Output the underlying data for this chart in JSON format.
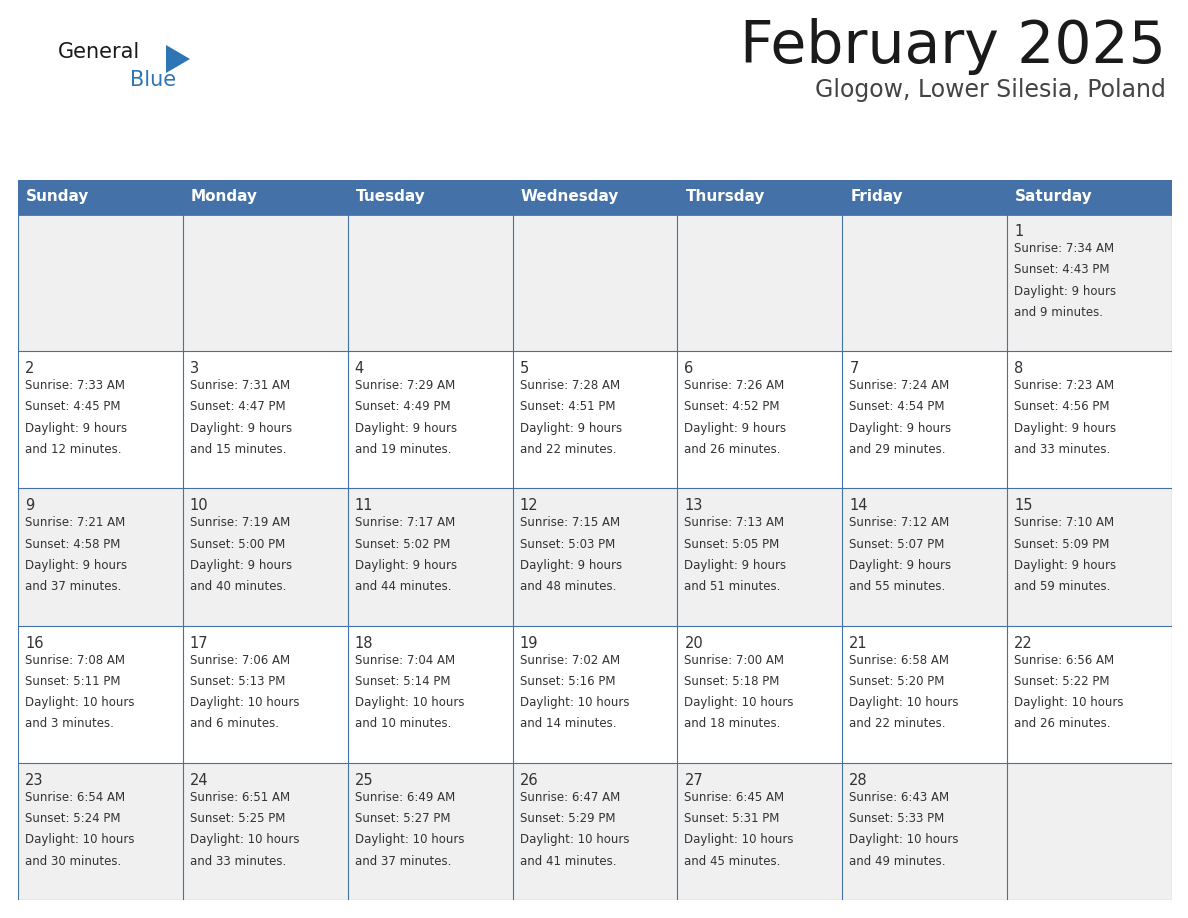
{
  "title": "February 2025",
  "subtitle": "Glogow, Lower Silesia, Poland",
  "days_of_week": [
    "Sunday",
    "Monday",
    "Tuesday",
    "Wednesday",
    "Thursday",
    "Friday",
    "Saturday"
  ],
  "header_bg": "#4472A8",
  "header_text": "#FFFFFF",
  "cell_bg_even": "#F0F0F0",
  "cell_bg_odd": "#FFFFFF",
  "cell_text": "#333333",
  "border_color": "#4472A8",
  "border_thin": "#CCCCCC",
  "title_color": "#1a1a1a",
  "subtitle_color": "#444444",
  "logo_general_color": "#1a1a1a",
  "logo_blue_color": "#2E75B6",
  "calendar_data": [
    {
      "day": 1,
      "col": 6,
      "row": 0,
      "sunrise": "7:34 AM",
      "sunset": "4:43 PM",
      "daylight": "9 hours and 9 minutes."
    },
    {
      "day": 2,
      "col": 0,
      "row": 1,
      "sunrise": "7:33 AM",
      "sunset": "4:45 PM",
      "daylight": "9 hours and 12 minutes."
    },
    {
      "day": 3,
      "col": 1,
      "row": 1,
      "sunrise": "7:31 AM",
      "sunset": "4:47 PM",
      "daylight": "9 hours and 15 minutes."
    },
    {
      "day": 4,
      "col": 2,
      "row": 1,
      "sunrise": "7:29 AM",
      "sunset": "4:49 PM",
      "daylight": "9 hours and 19 minutes."
    },
    {
      "day": 5,
      "col": 3,
      "row": 1,
      "sunrise": "7:28 AM",
      "sunset": "4:51 PM",
      "daylight": "9 hours and 22 minutes."
    },
    {
      "day": 6,
      "col": 4,
      "row": 1,
      "sunrise": "7:26 AM",
      "sunset": "4:52 PM",
      "daylight": "9 hours and 26 minutes."
    },
    {
      "day": 7,
      "col": 5,
      "row": 1,
      "sunrise": "7:24 AM",
      "sunset": "4:54 PM",
      "daylight": "9 hours and 29 minutes."
    },
    {
      "day": 8,
      "col": 6,
      "row": 1,
      "sunrise": "7:23 AM",
      "sunset": "4:56 PM",
      "daylight": "9 hours and 33 minutes."
    },
    {
      "day": 9,
      "col": 0,
      "row": 2,
      "sunrise": "7:21 AM",
      "sunset": "4:58 PM",
      "daylight": "9 hours and 37 minutes."
    },
    {
      "day": 10,
      "col": 1,
      "row": 2,
      "sunrise": "7:19 AM",
      "sunset": "5:00 PM",
      "daylight": "9 hours and 40 minutes."
    },
    {
      "day": 11,
      "col": 2,
      "row": 2,
      "sunrise": "7:17 AM",
      "sunset": "5:02 PM",
      "daylight": "9 hours and 44 minutes."
    },
    {
      "day": 12,
      "col": 3,
      "row": 2,
      "sunrise": "7:15 AM",
      "sunset": "5:03 PM",
      "daylight": "9 hours and 48 minutes."
    },
    {
      "day": 13,
      "col": 4,
      "row": 2,
      "sunrise": "7:13 AM",
      "sunset": "5:05 PM",
      "daylight": "9 hours and 51 minutes."
    },
    {
      "day": 14,
      "col": 5,
      "row": 2,
      "sunrise": "7:12 AM",
      "sunset": "5:07 PM",
      "daylight": "9 hours and 55 minutes."
    },
    {
      "day": 15,
      "col": 6,
      "row": 2,
      "sunrise": "7:10 AM",
      "sunset": "5:09 PM",
      "daylight": "9 hours and 59 minutes."
    },
    {
      "day": 16,
      "col": 0,
      "row": 3,
      "sunrise": "7:08 AM",
      "sunset": "5:11 PM",
      "daylight": "10 hours and 3 minutes."
    },
    {
      "day": 17,
      "col": 1,
      "row": 3,
      "sunrise": "7:06 AM",
      "sunset": "5:13 PM",
      "daylight": "10 hours and 6 minutes."
    },
    {
      "day": 18,
      "col": 2,
      "row": 3,
      "sunrise": "7:04 AM",
      "sunset": "5:14 PM",
      "daylight": "10 hours and 10 minutes."
    },
    {
      "day": 19,
      "col": 3,
      "row": 3,
      "sunrise": "7:02 AM",
      "sunset": "5:16 PM",
      "daylight": "10 hours and 14 minutes."
    },
    {
      "day": 20,
      "col": 4,
      "row": 3,
      "sunrise": "7:00 AM",
      "sunset": "5:18 PM",
      "daylight": "10 hours and 18 minutes."
    },
    {
      "day": 21,
      "col": 5,
      "row": 3,
      "sunrise": "6:58 AM",
      "sunset": "5:20 PM",
      "daylight": "10 hours and 22 minutes."
    },
    {
      "day": 22,
      "col": 6,
      "row": 3,
      "sunrise": "6:56 AM",
      "sunset": "5:22 PM",
      "daylight": "10 hours and 26 minutes."
    },
    {
      "day": 23,
      "col": 0,
      "row": 4,
      "sunrise": "6:54 AM",
      "sunset": "5:24 PM",
      "daylight": "10 hours and 30 minutes."
    },
    {
      "day": 24,
      "col": 1,
      "row": 4,
      "sunrise": "6:51 AM",
      "sunset": "5:25 PM",
      "daylight": "10 hours and 33 minutes."
    },
    {
      "day": 25,
      "col": 2,
      "row": 4,
      "sunrise": "6:49 AM",
      "sunset": "5:27 PM",
      "daylight": "10 hours and 37 minutes."
    },
    {
      "day": 26,
      "col": 3,
      "row": 4,
      "sunrise": "6:47 AM",
      "sunset": "5:29 PM",
      "daylight": "10 hours and 41 minutes."
    },
    {
      "day": 27,
      "col": 4,
      "row": 4,
      "sunrise": "6:45 AM",
      "sunset": "5:31 PM",
      "daylight": "10 hours and 45 minutes."
    },
    {
      "day": 28,
      "col": 5,
      "row": 4,
      "sunrise": "6:43 AM",
      "sunset": "5:33 PM",
      "daylight": "10 hours and 49 minutes."
    }
  ],
  "num_rows": 5,
  "num_cols": 7
}
